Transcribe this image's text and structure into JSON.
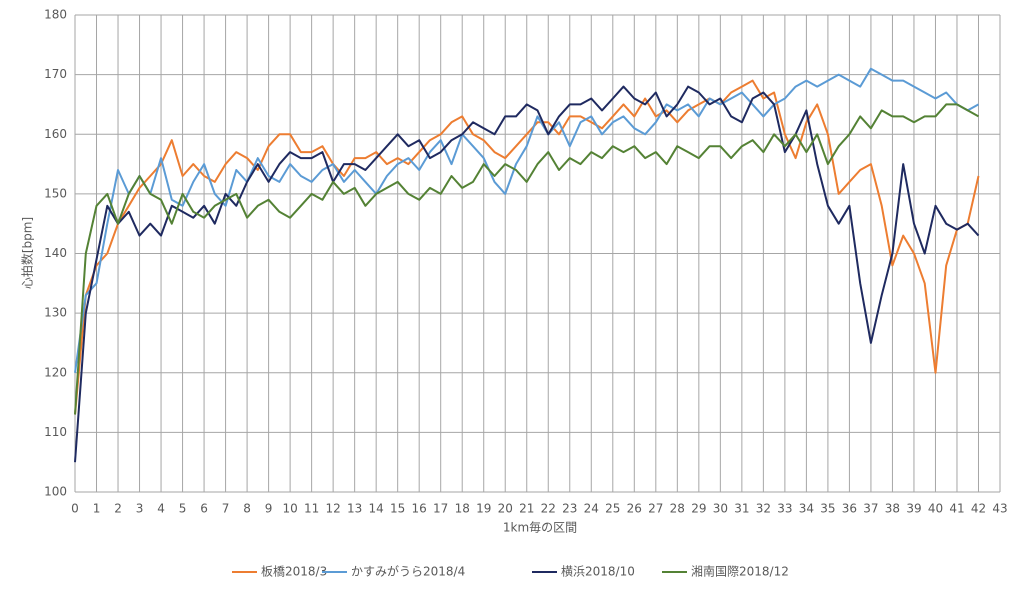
{
  "chart_data": {
    "type": "line",
    "x_label": "1km毎の区間",
    "y_label": "心拍数[bpm]",
    "x": [
      0,
      0.5,
      1,
      1.5,
      2,
      2.5,
      3,
      3.5,
      4,
      4.5,
      5,
      5.5,
      6,
      6.5,
      7,
      7.5,
      8,
      8.5,
      9,
      9.5,
      10,
      10.5,
      11,
      11.5,
      12,
      12.5,
      13,
      13.5,
      14,
      14.5,
      15,
      15.5,
      16,
      16.5,
      17,
      17.5,
      18,
      18.5,
      19,
      19.5,
      20,
      20.5,
      21,
      21.5,
      22,
      22.5,
      23,
      23.5,
      24,
      24.5,
      25,
      25.5,
      26,
      26.5,
      27,
      27.5,
      28,
      28.5,
      29,
      29.5,
      30,
      30.5,
      31,
      31.5,
      32,
      32.5,
      33,
      33.5,
      34,
      34.5,
      35,
      35.5,
      36,
      36.5,
      37,
      37.5,
      38,
      38.5,
      39,
      39.5,
      40,
      40.5,
      41,
      41.5,
      42
    ],
    "series": [
      {
        "name": "板橋2018/3",
        "color": "#ed7d31",
        "values": [
          113,
          133,
          138,
          140,
          145,
          148,
          151,
          153,
          155,
          159,
          153,
          155,
          153,
          152,
          155,
          157,
          156,
          154,
          158,
          160,
          160,
          157,
          157,
          158,
          155,
          153,
          156,
          156,
          157,
          155,
          156,
          155,
          157,
          159,
          160,
          162,
          163,
          160,
          159,
          157,
          156,
          158,
          160,
          162,
          162,
          160,
          163,
          163,
          162,
          161,
          163,
          165,
          163,
          166,
          163,
          164,
          162,
          164,
          165,
          166,
          165,
          167,
          168,
          169,
          166,
          167,
          160,
          156,
          162,
          165,
          160,
          150,
          152,
          154,
          155,
          148,
          138,
          143,
          140,
          135,
          120,
          138,
          144,
          145,
          153
        ]
      },
      {
        "name": "かすみがうら2018/4",
        "color": "#5b9bd5",
        "values": [
          120,
          133,
          135,
          145,
          154,
          150,
          153,
          150,
          156,
          149,
          148,
          152,
          155,
          150,
          148,
          154,
          152,
          156,
          153,
          152,
          155,
          153,
          152,
          154,
          155,
          152,
          154,
          152,
          150,
          153,
          155,
          156,
          154,
          157,
          159,
          155,
          160,
          158,
          156,
          152,
          150,
          155,
          158,
          163,
          160,
          162,
          158,
          162,
          163,
          160,
          162,
          163,
          161,
          160,
          162,
          165,
          164,
          165,
          163,
          166,
          165,
          166,
          167,
          165,
          163,
          165,
          166,
          168,
          169,
          168,
          169,
          170,
          169,
          168,
          171,
          170,
          169,
          169,
          168,
          167,
          166,
          167,
          165,
          164,
          165
        ]
      },
      {
        "name": "横浜2018/10",
        "color": "#1f2a60",
        "values": [
          105,
          130,
          139,
          148,
          145,
          147,
          143,
          145,
          143,
          148,
          147,
          146,
          148,
          145,
          150,
          148,
          152,
          155,
          152,
          155,
          157,
          156,
          156,
          157,
          152,
          155,
          155,
          154,
          156,
          158,
          160,
          158,
          159,
          156,
          157,
          159,
          160,
          162,
          161,
          160,
          163,
          163,
          165,
          164,
          160,
          163,
          165,
          165,
          166,
          164,
          166,
          168,
          166,
          165,
          167,
          163,
          165,
          168,
          167,
          165,
          166,
          163,
          162,
          166,
          167,
          165,
          157,
          160,
          164,
          155,
          148,
          145,
          148,
          135,
          125,
          133,
          140,
          155,
          145,
          140,
          148,
          145,
          144,
          145,
          143
        ]
      },
      {
        "name": "湘南国際2018/12",
        "color": "#548235",
        "values": [
          113,
          140,
          148,
          150,
          145,
          150,
          153,
          150,
          149,
          145,
          150,
          147,
          146,
          148,
          149,
          150,
          146,
          148,
          149,
          147,
          146,
          148,
          150,
          149,
          152,
          150,
          151,
          148,
          150,
          151,
          152,
          150,
          149,
          151,
          150,
          153,
          151,
          152,
          155,
          153,
          155,
          154,
          152,
          155,
          157,
          154,
          156,
          155,
          157,
          156,
          158,
          157,
          158,
          156,
          157,
          155,
          158,
          157,
          156,
          158,
          158,
          156,
          158,
          159,
          157,
          160,
          158,
          160,
          157,
          160,
          155,
          158,
          160,
          163,
          161,
          164,
          163,
          163,
          162,
          163,
          163,
          165,
          165,
          164,
          163
        ]
      }
    ],
    "xlim": [
      0,
      43
    ],
    "xticks": [
      0,
      1,
      2,
      3,
      4,
      5,
      6,
      7,
      8,
      9,
      10,
      11,
      12,
      13,
      14,
      15,
      16,
      17,
      18,
      19,
      20,
      21,
      22,
      23,
      24,
      25,
      26,
      27,
      28,
      29,
      30,
      31,
      32,
      33,
      34,
      35,
      36,
      37,
      38,
      39,
      40,
      41,
      42,
      43
    ],
    "ylim": [
      100,
      180
    ],
    "yticks": [
      100,
      110,
      120,
      130,
      140,
      150,
      160,
      170,
      180
    ],
    "grid": true,
    "legend": "bottom"
  }
}
